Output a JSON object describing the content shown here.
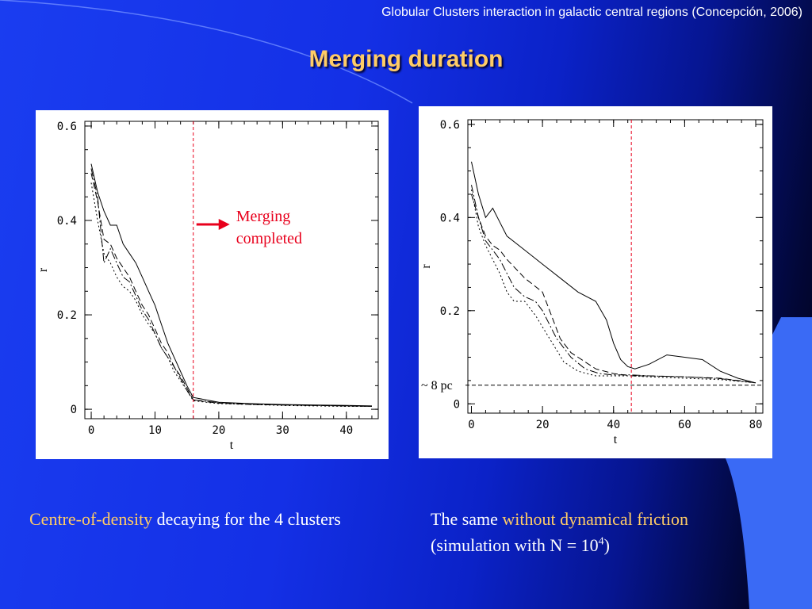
{
  "header": {
    "subtitle": "Globular Clusters interaction in galactic central regions (Concepción, 2006)",
    "title": "Merging duration"
  },
  "colors": {
    "title": "#ffcc66",
    "highlight": "#ffcc66",
    "marker_line": "#e8001c",
    "annotation": "#e8001c"
  },
  "captions": {
    "left": {
      "highlight": "Centre-of-density",
      "rest": " decaying for the 4 clusters"
    },
    "right": {
      "prefix": "The same ",
      "highlight": "without dynamical friction",
      "line2": "(simulation with N = 10",
      "exponent": "4",
      "suffix": ")"
    }
  },
  "chart_data": [
    {
      "type": "line",
      "xlabel": "t",
      "ylabel": "r",
      "xlim": [
        -1,
        45
      ],
      "ylim": [
        -0.02,
        0.61
      ],
      "xticks": [
        0,
        10,
        20,
        30,
        40
      ],
      "yticks": [
        0,
        0.2,
        0.4,
        0.6
      ],
      "xticklabels": [
        "0",
        "10",
        "20",
        "30",
        "40"
      ],
      "yticklabels": [
        "0",
        "0.2",
        "0.4",
        "0.6"
      ],
      "vline": 16,
      "annotation": {
        "line1": "Merging",
        "line2": "completed"
      },
      "series": [
        {
          "dash": "none",
          "x": [
            0,
            1,
            2,
            3,
            4,
            5,
            6,
            7,
            8,
            9,
            10,
            11,
            12,
            13,
            14,
            15,
            16,
            18,
            20,
            25,
            30,
            35,
            40,
            44
          ],
          "y": [
            0.52,
            0.46,
            0.42,
            0.39,
            0.39,
            0.35,
            0.33,
            0.31,
            0.28,
            0.25,
            0.22,
            0.18,
            0.14,
            0.11,
            0.08,
            0.05,
            0.025,
            0.02,
            0.015,
            0.012,
            0.01,
            0.009,
            0.008,
            0.007
          ]
        },
        {
          "dash": "8,4",
          "x": [
            0,
            1,
            2,
            3,
            4,
            5,
            6,
            7,
            8,
            9,
            10,
            11,
            12,
            13,
            14,
            15,
            16,
            18,
            20,
            25,
            30,
            35,
            40,
            44
          ],
          "y": [
            0.5,
            0.44,
            0.36,
            0.35,
            0.32,
            0.3,
            0.28,
            0.25,
            0.22,
            0.2,
            0.17,
            0.14,
            0.12,
            0.09,
            0.07,
            0.045,
            0.02,
            0.016,
            0.013,
            0.01,
            0.009,
            0.008,
            0.007,
            0.006
          ]
        },
        {
          "dash": "2,3",
          "x": [
            0,
            1,
            2,
            3,
            4,
            5,
            6,
            7,
            8,
            9,
            10,
            11,
            12,
            13,
            14,
            15,
            16,
            18,
            20,
            25,
            30,
            35,
            40,
            44
          ],
          "y": [
            0.48,
            0.4,
            0.33,
            0.31,
            0.28,
            0.26,
            0.25,
            0.23,
            0.2,
            0.18,
            0.16,
            0.13,
            0.11,
            0.08,
            0.06,
            0.04,
            0.018,
            0.015,
            0.012,
            0.01,
            0.008,
            0.007,
            0.006,
            0.006
          ]
        },
        {
          "dash": "10,3,2,3",
          "x": [
            0,
            1,
            2,
            3,
            4,
            5,
            6,
            7,
            8,
            9,
            10,
            11,
            12,
            13,
            14,
            15,
            16,
            18,
            20,
            25,
            30,
            35,
            40,
            44
          ],
          "y": [
            0.51,
            0.45,
            0.31,
            0.34,
            0.31,
            0.28,
            0.27,
            0.24,
            0.21,
            0.19,
            0.16,
            0.13,
            0.11,
            0.09,
            0.065,
            0.04,
            0.02,
            0.017,
            0.014,
            0.011,
            0.009,
            0.008,
            0.007,
            0.006
          ]
        }
      ]
    },
    {
      "type": "line",
      "xlabel": "t",
      "ylabel": "r",
      "xlim": [
        -1,
        82
      ],
      "ylim": [
        -0.02,
        0.61
      ],
      "xticks": [
        0,
        20,
        40,
        60,
        80
      ],
      "yticks": [
        0,
        0.2,
        0.4,
        0.6
      ],
      "xticklabels": [
        "0",
        "20",
        "40",
        "60",
        "80"
      ],
      "yticklabels": [
        "0",
        "0.2",
        "0.4",
        "0.6"
      ],
      "vline": 45,
      "hline": {
        "y": 0.04,
        "label": "~ 8 pc"
      },
      "series": [
        {
          "dash": "none",
          "x": [
            0,
            2,
            4,
            6,
            8,
            10,
            15,
            20,
            25,
            30,
            35,
            38,
            40,
            42,
            44,
            46,
            50,
            55,
            60,
            65,
            70,
            75,
            80
          ],
          "y": [
            0.52,
            0.45,
            0.4,
            0.42,
            0.39,
            0.36,
            0.33,
            0.3,
            0.27,
            0.24,
            0.22,
            0.18,
            0.13,
            0.095,
            0.08,
            0.075,
            0.085,
            0.105,
            0.1,
            0.095,
            0.07,
            0.055,
            0.045
          ]
        },
        {
          "dash": "8,4",
          "x": [
            0,
            2,
            4,
            6,
            8,
            10,
            15,
            20,
            22,
            25,
            28,
            30,
            35,
            40,
            45,
            50,
            60,
            70,
            80
          ],
          "y": [
            0.45,
            0.4,
            0.36,
            0.34,
            0.33,
            0.31,
            0.27,
            0.24,
            0.2,
            0.14,
            0.11,
            0.1,
            0.075,
            0.065,
            0.06,
            0.06,
            0.058,
            0.055,
            0.045
          ]
        },
        {
          "dash": "2,3",
          "x": [
            0,
            2,
            4,
            6,
            8,
            10,
            12,
            15,
            18,
            22,
            26,
            30,
            35,
            40,
            45,
            50,
            60,
            70,
            80
          ],
          "y": [
            0.46,
            0.38,
            0.34,
            0.31,
            0.28,
            0.24,
            0.22,
            0.22,
            0.19,
            0.14,
            0.09,
            0.07,
            0.06,
            0.06,
            0.06,
            0.058,
            0.055,
            0.052,
            0.045
          ]
        },
        {
          "dash": "10,3,2,3",
          "x": [
            0,
            2,
            4,
            6,
            8,
            10,
            12,
            15,
            18,
            20,
            24,
            28,
            32,
            36,
            40,
            45,
            50,
            60,
            70,
            80
          ],
          "y": [
            0.47,
            0.4,
            0.35,
            0.33,
            0.31,
            0.28,
            0.25,
            0.23,
            0.22,
            0.2,
            0.14,
            0.1,
            0.075,
            0.065,
            0.062,
            0.062,
            0.06,
            0.058,
            0.054,
            0.045
          ]
        }
      ]
    }
  ]
}
